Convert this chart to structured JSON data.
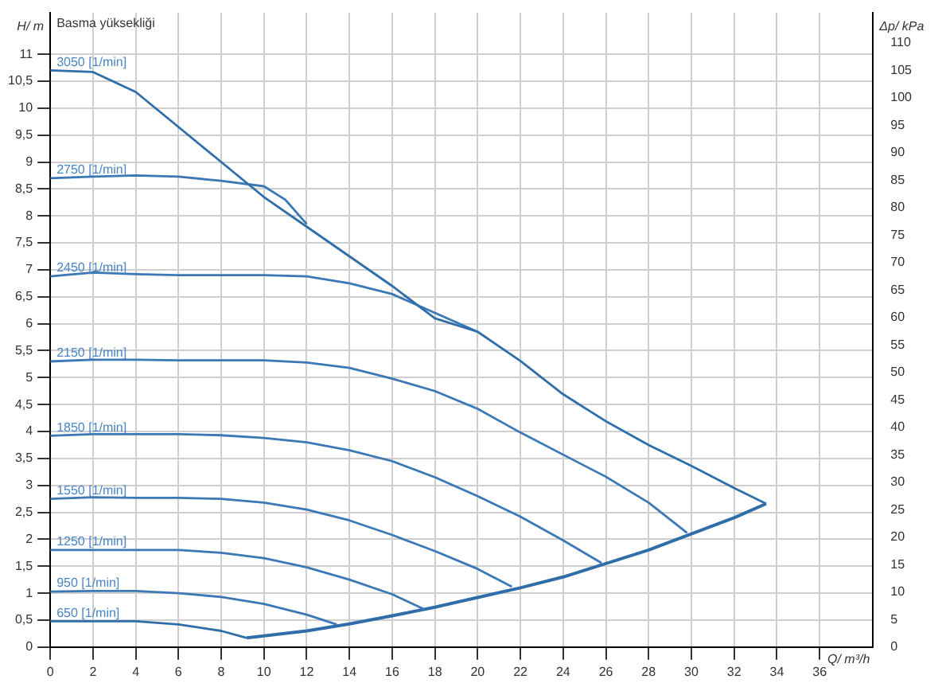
{
  "chart_data": {
    "type": "line",
    "title": "Basma yüksekliği",
    "xlabel": "Q/ m³/h",
    "ylabel": "H/ m",
    "y2label": "Δp/ kPa",
    "xlim": [
      0,
      38.5
    ],
    "xticks": [
      0,
      2,
      4,
      6,
      8,
      10,
      12,
      14,
      16,
      18,
      20,
      22,
      24,
      26,
      28,
      30,
      32,
      34,
      36
    ],
    "ylim": [
      0,
      11.77
    ],
    "yticks": [
      0,
      {
        "value": 0.5,
        "label": "0,5"
      },
      1,
      {
        "value": 1.5,
        "label": "1,5"
      },
      2,
      {
        "value": 2.5,
        "label": "2,5"
      },
      3,
      {
        "value": 3.5,
        "label": "3,5"
      },
      4,
      {
        "value": 4.5,
        "label": "4,5"
      },
      5,
      {
        "value": 5.5,
        "label": "5,5"
      },
      6,
      {
        "value": 6.5,
        "label": "6,5"
      },
      7,
      {
        "value": 7.5,
        "label": "7,5"
      },
      8,
      {
        "value": 8.5,
        "label": "8,5"
      },
      9,
      {
        "value": 9.5,
        "label": "9,5"
      },
      10,
      {
        "value": 10.5,
        "label": "10,5"
      },
      11
    ],
    "y2lim": [
      0,
      115.5
    ],
    "y2ticks": [
      0,
      5,
      10,
      15,
      20,
      25,
      30,
      35,
      40,
      45,
      50,
      55,
      60,
      65,
      70,
      75,
      80,
      85,
      90,
      95,
      100,
      105,
      110
    ],
    "grid": true,
    "legend": false,
    "marker": "none",
    "line_style": "solid",
    "series": [
      {
        "name": "3050 [1/min]",
        "color": "#2f6ea8",
        "x": [
          0,
          2,
          4,
          6,
          8,
          10,
          12,
          14,
          16,
          18,
          20,
          22,
          24,
          26,
          28,
          30,
          32,
          33.5
        ],
        "values": [
          10.7,
          10.67,
          10.3,
          9.65,
          9.0,
          8.35,
          7.8,
          7.25,
          6.7,
          6.1,
          5.85,
          5.31,
          4.69,
          4.19,
          3.75,
          3.36,
          2.95,
          2.66
        ]
      },
      {
        "name": "2750 [1/min]",
        "color": "#3b78b5",
        "x": [
          0,
          2,
          4,
          6,
          8,
          10,
          11,
          12
        ],
        "values": [
          8.7,
          8.73,
          8.75,
          8.73,
          8.65,
          8.55,
          8.3,
          7.85
        ]
      },
      {
        "name": "2450 [1/min]",
        "color": "#3b78b5",
        "x": [
          0,
          2,
          4,
          6,
          8,
          10,
          12,
          14,
          16,
          18,
          20
        ],
        "values": [
          6.88,
          6.95,
          6.92,
          6.9,
          6.9,
          6.9,
          6.88,
          6.75,
          6.55,
          6.2,
          5.85
        ]
      },
      {
        "name": "2150 [1/min]",
        "color": "#3b78b5",
        "x": [
          0,
          2,
          4,
          6,
          8,
          10,
          12,
          14,
          16,
          18,
          20,
          22,
          24,
          26,
          28,
          29.8
        ],
        "values": [
          5.3,
          5.33,
          5.33,
          5.32,
          5.32,
          5.32,
          5.28,
          5.18,
          4.98,
          4.75,
          4.42,
          3.98,
          3.57,
          3.16,
          2.68,
          2.12
        ]
      },
      {
        "name": "1850 [1/min]",
        "color": "#3b78b5",
        "x": [
          0,
          2,
          4,
          6,
          8,
          10,
          12,
          14,
          16,
          18,
          20,
          22,
          24,
          25.8
        ],
        "values": [
          3.92,
          3.95,
          3.95,
          3.95,
          3.93,
          3.88,
          3.8,
          3.65,
          3.45,
          3.15,
          2.8,
          2.42,
          1.98,
          1.56
        ]
      },
      {
        "name": "1550 [1/min]",
        "color": "#3b78b5",
        "x": [
          0,
          2,
          4,
          6,
          8,
          10,
          12,
          14,
          16,
          18,
          20,
          21.6
        ],
        "values": [
          2.75,
          2.78,
          2.77,
          2.77,
          2.75,
          2.68,
          2.55,
          2.35,
          2.08,
          1.78,
          1.45,
          1.12
        ]
      },
      {
        "name": "1250 [1/min]",
        "color": "#3b78b5",
        "x": [
          0,
          2,
          4,
          6,
          8,
          10,
          12,
          14,
          16,
          17.5
        ],
        "values": [
          1.8,
          1.8,
          1.8,
          1.8,
          1.75,
          1.65,
          1.48,
          1.25,
          0.98,
          0.7
        ]
      },
      {
        "name": "950 [1/min]",
        "color": "#3b78b5",
        "x": [
          0,
          2,
          4,
          6,
          8,
          10,
          12,
          13.4
        ],
        "values": [
          1.03,
          1.04,
          1.04,
          1.0,
          0.93,
          0.8,
          0.6,
          0.42
        ]
      },
      {
        "name": "650 [1/min]",
        "color": "#2f6ea8",
        "x": [
          0,
          2,
          4,
          6,
          8,
          9.2
        ],
        "values": [
          0.48,
          0.48,
          0.48,
          0.42,
          0.3,
          0.17
        ]
      },
      {
        "color": "#2f6ea8",
        "x": [
          9.2,
          12,
          14,
          16,
          18,
          20,
          22,
          24,
          26,
          28,
          30,
          32,
          33.5
        ],
        "values": [
          0.17,
          0.3,
          0.43,
          0.58,
          0.74,
          0.92,
          1.1,
          1.3,
          1.55,
          1.8,
          2.1,
          2.4,
          2.66
        ]
      }
    ]
  }
}
